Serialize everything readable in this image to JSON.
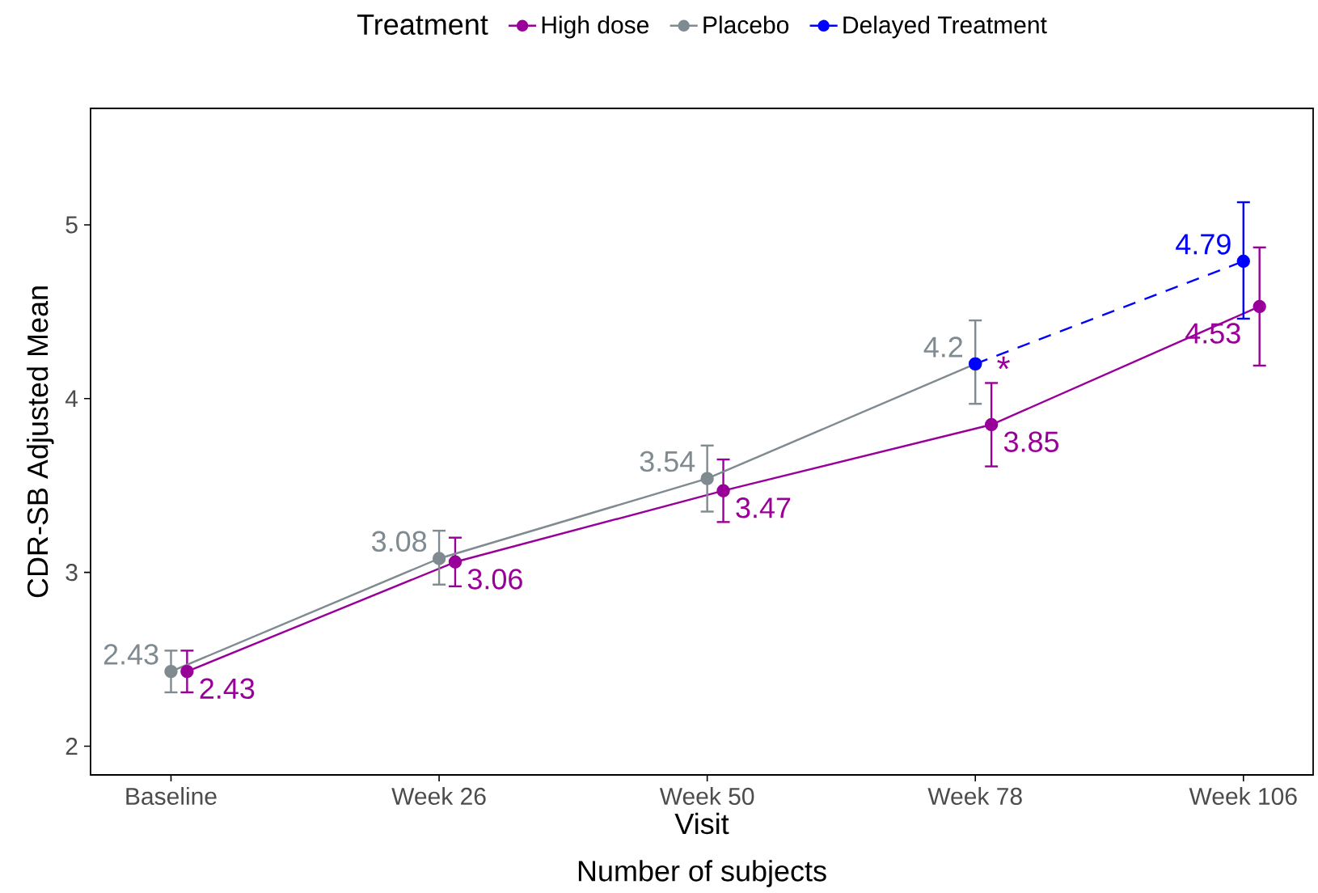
{
  "chart_data": {
    "type": "line",
    "xlabel": "Visit",
    "ylabel": "CDR-SB Adjusted Mean",
    "legend_title": "Treatment",
    "legend": "top",
    "marker": "circle",
    "categories": [
      "Baseline",
      "Week 26",
      "Week 50",
      "Week 78",
      "Week 106"
    ],
    "ylim": [
      1.835,
      5.67
    ],
    "yticks": [
      2,
      3,
      4,
      5
    ],
    "series": [
      {
        "name": "High dose",
        "color": "#990099",
        "values": [
          2.43,
          3.06,
          3.47,
          3.85,
          4.53
        ],
        "errors": [
          [
            2.31,
            2.55
          ],
          [
            2.92,
            3.2
          ],
          [
            3.29,
            3.65
          ],
          [
            3.61,
            4.09
          ],
          [
            4.19,
            4.87
          ]
        ],
        "value_labels": [
          "2.43",
          "3.06",
          "3.47",
          "3.85",
          "4.53"
        ]
      },
      {
        "name": "Placebo",
        "color": "#7f8a91",
        "values": [
          2.43,
          3.08,
          3.54,
          4.2,
          null
        ],
        "errors": [
          [
            2.31,
            2.55
          ],
          [
            2.93,
            3.24
          ],
          [
            3.35,
            3.73
          ],
          [
            3.97,
            4.45
          ],
          null
        ],
        "value_labels": [
          "2.43",
          "3.08",
          "3.54",
          "4.2",
          null
        ]
      },
      {
        "name": "Delayed Treatment",
        "color": "#0000ff",
        "line_style": "dashed",
        "values": [
          null,
          null,
          null,
          4.2,
          4.79
        ],
        "errors": [
          null,
          null,
          null,
          null,
          [
            4.46,
            5.13
          ]
        ],
        "value_labels": [
          null,
          null,
          null,
          null,
          "4.79"
        ]
      }
    ],
    "annotations": [
      {
        "text": "*",
        "x": "Week 78",
        "y": 4.09
      },
      "Number of subjects"
    ]
  }
}
